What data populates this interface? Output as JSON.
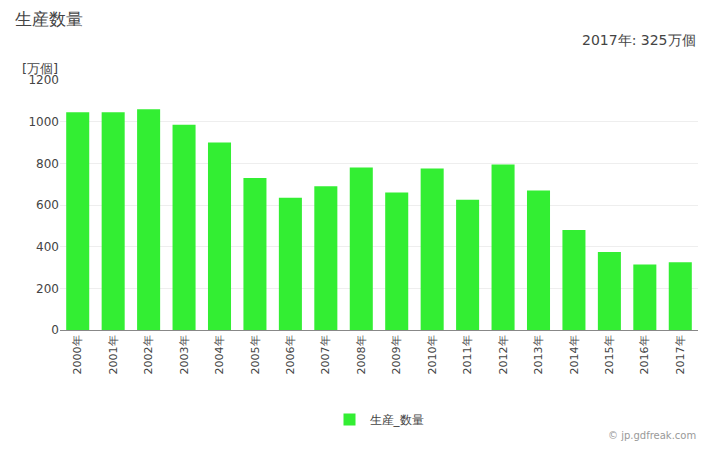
{
  "chart_data": {
    "type": "bar",
    "title": "生産数量",
    "ylabel": "[万個]",
    "annotations": [
      "2017年: 325万個",
      "© jp.gdfreak.com"
    ],
    "categories": [
      "2000年",
      "2001年",
      "2002年",
      "2003年",
      "2004年",
      "2005年",
      "2006年",
      "2007年",
      "2008年",
      "2009年",
      "2010年",
      "2011年",
      "2012年",
      "2013年",
      "2014年",
      "2015年",
      "2016年",
      "2017年"
    ],
    "series": [
      {
        "name": "生産_数量",
        "color": "#33ee33",
        "values": [
          1045,
          1045,
          1060,
          985,
          900,
          730,
          635,
          690,
          780,
          660,
          775,
          625,
          795,
          670,
          480,
          375,
          315,
          325
        ]
      }
    ],
    "ylim": [
      0,
      1200
    ],
    "yticks": [
      0,
      200,
      400,
      600,
      800,
      1000,
      1200
    ],
    "grid": true,
    "legend": "bottom"
  }
}
